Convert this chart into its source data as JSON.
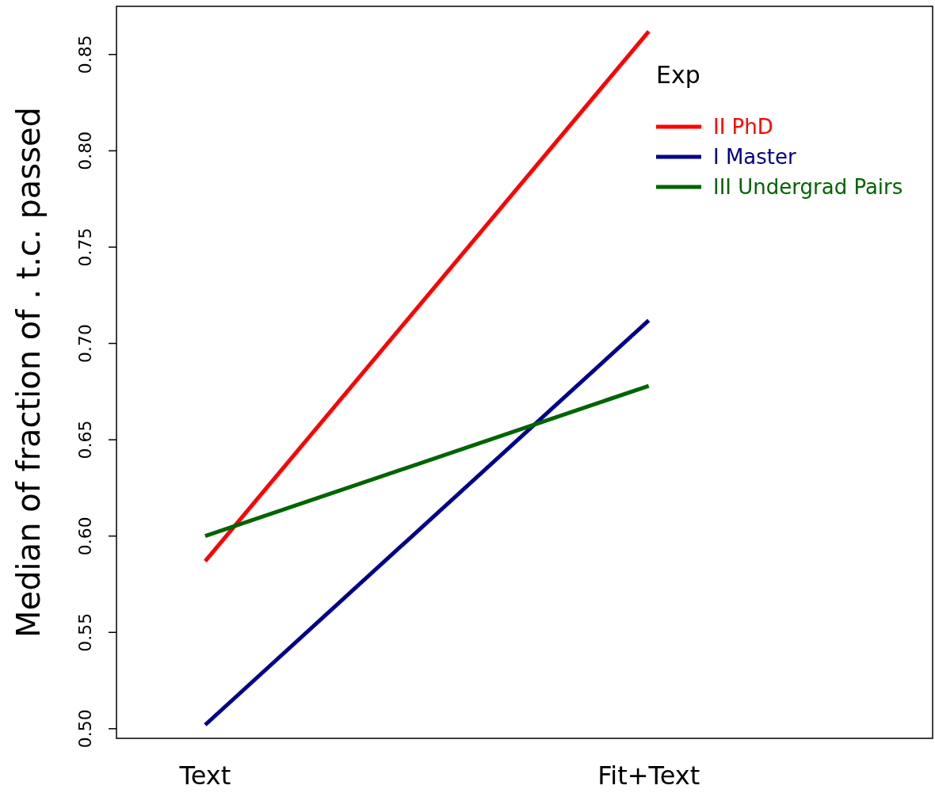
{
  "chart_data": {
    "type": "line",
    "ylabel": "Median of fraction of . t.c. passed",
    "legend_title": "Exp",
    "categories": [
      "Text",
      "Fit+Text"
    ],
    "series": [
      {
        "name": "II PhD",
        "color": "#ff0000",
        "values": [
          0.587,
          0.862
        ]
      },
      {
        "name": "I Master",
        "color": "#00008b",
        "values": [
          0.502,
          0.712
        ]
      },
      {
        "name": "III Undergrad Pairs",
        "color": "#006400",
        "values": [
          0.6,
          0.678
        ]
      }
    ],
    "ylim": [
      0.495,
      0.875
    ],
    "yticks": [
      {
        "value": 0.5,
        "label": "0.50"
      },
      0.55,
      {
        "value": 0.6,
        "label": "0.60"
      },
      0.65,
      {
        "value": 0.7,
        "label": "0.70"
      },
      0.75,
      {
        "value": 0.8,
        "label": "0.80"
      },
      0.85
    ],
    "grid": false,
    "legend": "top right",
    "marker": "none",
    "line_style": "solid"
  }
}
